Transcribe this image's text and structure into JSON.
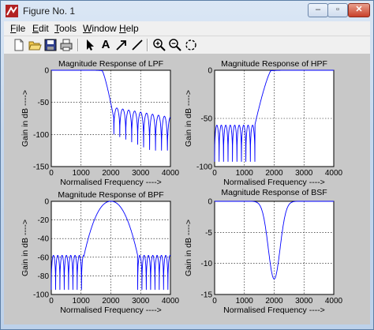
{
  "window": {
    "title": "Figure No. 1",
    "buttons": {
      "minimize": "‒",
      "maximize": "▫",
      "close": "✕"
    }
  },
  "menu": [
    {
      "underline": "F",
      "rest": "ile"
    },
    {
      "underline": "E",
      "rest": "dit"
    },
    {
      "underline": "T",
      "rest": "ools"
    },
    {
      "underline": "W",
      "rest": "indow"
    },
    {
      "underline": "H",
      "rest": "elp"
    }
  ],
  "toolbar": {
    "icons": [
      "new-icon",
      "open-icon",
      "save-icon",
      "print-icon",
      "pointer-icon",
      "text-icon",
      "arrow-icon",
      "line-icon",
      "zoom-in-icon",
      "zoom-out-icon",
      "rotate-icon"
    ],
    "text_tool": "A"
  },
  "colors": {
    "line": "#0000ff",
    "axes_bg": "#ffffff",
    "figure_bg": "#c8c8c8"
  },
  "chart_data": [
    {
      "type": "line",
      "title": "Magnitude Response of LPF",
      "xlabel": "Normalised Frequency ---->",
      "ylabel": "Gain in dB ---->",
      "xlim": [
        0,
        4000
      ],
      "ylim": [
        -150,
        0
      ],
      "xticks": [
        0,
        1000,
        2000,
        3000,
        4000
      ],
      "yticks": [
        -150,
        -100,
        -50,
        0
      ],
      "grid": "dotted",
      "series": [
        {
          "kind": "lpf",
          "passband_db": 0,
          "cutoff": 1700,
          "stop_start": 2100,
          "floor_db": -60
        }
      ]
    },
    {
      "type": "line",
      "title": "Magnitude Response of HPF",
      "xlabel": "Normalised Frequency ---->",
      "ylabel": "Gain in dB ---->",
      "xlim": [
        0,
        4000
      ],
      "ylim": [
        -100,
        0
      ],
      "xticks": [
        0,
        1000,
        2000,
        3000,
        4000
      ],
      "yticks": [
        -100,
        -50,
        0
      ],
      "grid": "dotted",
      "series": [
        {
          "kind": "hpf",
          "passband_db": 0,
          "cutoff": 1900,
          "stop_end": 1350,
          "floor_db": -57
        }
      ]
    },
    {
      "type": "line",
      "title": "Magnitude Response of BPF",
      "xlabel": "Normalised Frequency ---->",
      "ylabel": "Gain in dB ---->",
      "xlim": [
        0,
        4000
      ],
      "ylim": [
        -100,
        0
      ],
      "xticks": [
        0,
        1000,
        2000,
        3000,
        4000
      ],
      "yticks": [
        -100,
        -80,
        -60,
        -40,
        -20,
        0
      ],
      "grid": "dotted",
      "series": [
        {
          "kind": "bpf",
          "center": 2000,
          "passband_db": 0,
          "stop_low": 1100,
          "stop_high": 2900,
          "floor_db": -58
        }
      ]
    },
    {
      "type": "line",
      "title": "",
      "xlabel": "Normalised Frequency ---->",
      "ylabel": "Gain in dB ---->",
      "xlim": [
        0,
        4000
      ],
      "ylim": [
        -15,
        0
      ],
      "xticks": [
        0,
        1000,
        2000,
        3000,
        4000
      ],
      "yticks": [
        -15,
        -10,
        -5,
        0
      ],
      "grid": "dotted",
      "series": [
        {
          "kind": "bsf",
          "center": 2000,
          "min_db": -12.5,
          "width": 280
        }
      ]
    }
  ],
  "overlay_title": "Magnitude Response of BSF"
}
